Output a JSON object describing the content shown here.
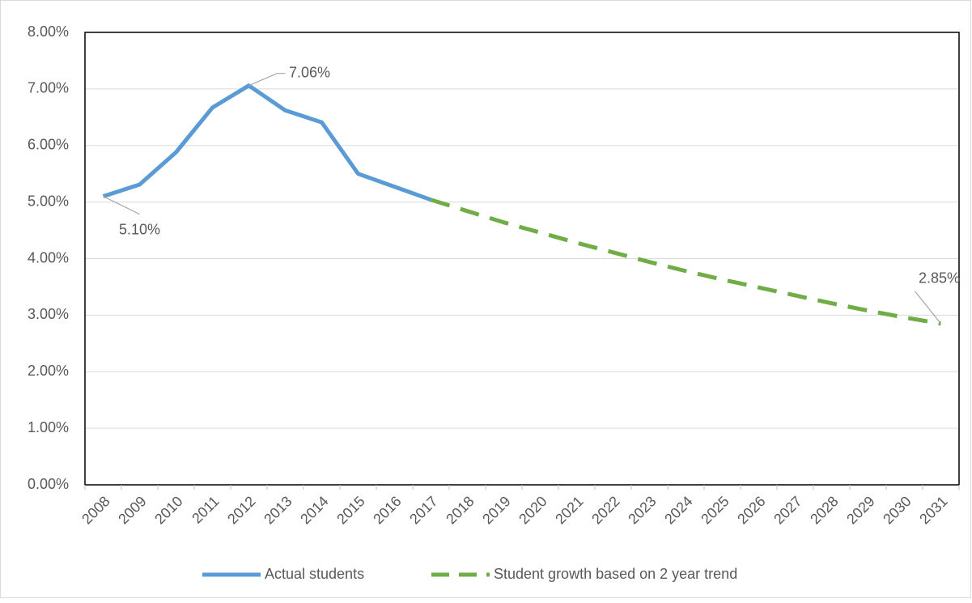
{
  "chart_data": {
    "type": "line",
    "categories": [
      "2008",
      "2009",
      "2010",
      "2011",
      "2012",
      "2013",
      "2014",
      "2015",
      "2016",
      "2017",
      "2018",
      "2019",
      "2020",
      "2021",
      "2022",
      "2023",
      "2024",
      "2025",
      "2026",
      "2027",
      "2028",
      "2029",
      "2030",
      "2031"
    ],
    "series": [
      {
        "name": "Actual students",
        "color": "#5b9bd5",
        "dashed": false,
        "values": [
          5.1,
          5.31,
          5.88,
          6.67,
          7.06,
          6.62,
          6.41,
          5.5,
          5.27,
          5.04,
          null,
          null,
          null,
          null,
          null,
          null,
          null,
          null,
          null,
          null,
          null,
          null,
          null,
          null
        ],
        "value_labels": [
          "5.10%",
          null,
          null,
          null,
          "7.06%",
          null,
          null,
          null,
          null,
          null,
          null,
          null,
          null,
          null,
          null,
          null,
          null,
          null,
          null,
          null,
          null,
          null,
          null,
          null
        ]
      },
      {
        "name": "Student growth based on 2 year trend",
        "color": "#70ad47",
        "dashed": true,
        "values": [
          null,
          null,
          null,
          null,
          null,
          null,
          null,
          null,
          null,
          5.04,
          4.84,
          4.64,
          4.46,
          4.28,
          4.11,
          3.94,
          3.78,
          3.63,
          3.49,
          3.35,
          3.21,
          3.08,
          2.96,
          2.85
        ],
        "value_labels": [
          null,
          null,
          null,
          null,
          null,
          null,
          null,
          null,
          null,
          null,
          null,
          null,
          null,
          null,
          null,
          null,
          null,
          null,
          null,
          null,
          null,
          null,
          null,
          "2.85%"
        ]
      }
    ],
    "ylim": [
      0,
      8
    ],
    "yticks": [
      {
        "value": 0,
        "label": "0.00%"
      },
      {
        "value": 1,
        "label": "1.00%"
      },
      {
        "value": 2,
        "label": "2.00%"
      },
      {
        "value": 3,
        "label": "3.00%"
      },
      {
        "value": 4,
        "label": "4.00%"
      },
      {
        "value": 5,
        "label": "5.00%"
      },
      {
        "value": 6,
        "label": "6.00%"
      },
      {
        "value": 7,
        "label": "7.00%"
      },
      {
        "value": 8,
        "label": "8.00%"
      }
    ],
    "grid": true,
    "legend": "bottom"
  }
}
